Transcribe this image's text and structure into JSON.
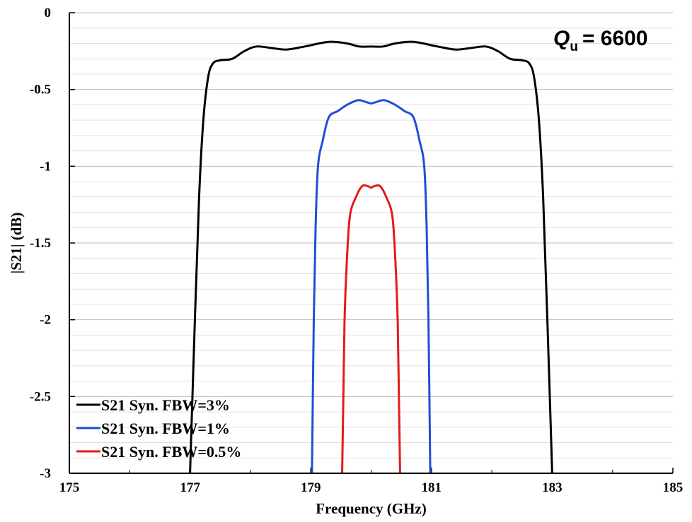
{
  "chart_data": {
    "type": "line",
    "xlabel": "Frequency (GHz)",
    "ylabel": "|S21| (dB)",
    "xlim": [
      175,
      185
    ],
    "ylim": [
      -3,
      0
    ],
    "x_ticks": [
      175,
      177,
      179,
      181,
      183,
      185
    ],
    "x_tick_labels": [
      "175",
      "177",
      "179",
      "181",
      "183",
      "185"
    ],
    "y_ticks": [
      0,
      -0.5,
      -1,
      -1.5,
      -2,
      -2.5,
      -3
    ],
    "y_tick_labels": [
      "0",
      "-0.5",
      "-1",
      "-1.5",
      "-2",
      "-2.5",
      "-3"
    ],
    "grid": "horizontal",
    "legend_position": "bottom-left",
    "annotation": {
      "main": "Q",
      "sub": "u",
      "rest": "= 6600"
    },
    "series": [
      {
        "name": "S21 Syn. FBW=3%",
        "color": "#000000",
        "points": [
          [
            177.0,
            -3.0
          ],
          [
            177.08,
            -2.0
          ],
          [
            177.15,
            -1.2
          ],
          [
            177.22,
            -0.7
          ],
          [
            177.3,
            -0.42
          ],
          [
            177.38,
            -0.33
          ],
          [
            177.5,
            -0.31
          ],
          [
            177.7,
            -0.3
          ],
          [
            177.9,
            -0.25
          ],
          [
            178.1,
            -0.22
          ],
          [
            178.35,
            -0.23
          ],
          [
            178.6,
            -0.24
          ],
          [
            178.9,
            -0.22
          ],
          [
            179.3,
            -0.19
          ],
          [
            179.6,
            -0.2
          ],
          [
            179.8,
            -0.22
          ],
          [
            180.0,
            -0.22
          ],
          [
            180.2,
            -0.22
          ],
          [
            180.4,
            -0.2
          ],
          [
            180.7,
            -0.19
          ],
          [
            181.1,
            -0.22
          ],
          [
            181.4,
            -0.24
          ],
          [
            181.65,
            -0.23
          ],
          [
            181.9,
            -0.22
          ],
          [
            182.1,
            -0.25
          ],
          [
            182.3,
            -0.3
          ],
          [
            182.5,
            -0.31
          ],
          [
            182.62,
            -0.33
          ],
          [
            182.7,
            -0.42
          ],
          [
            182.78,
            -0.7
          ],
          [
            182.85,
            -1.2
          ],
          [
            182.92,
            -2.0
          ],
          [
            183.0,
            -3.0
          ]
        ]
      },
      {
        "name": "S21 Syn. FBW=1%",
        "color": "#1f4fd6",
        "points": [
          [
            179.02,
            -3.0
          ],
          [
            179.05,
            -2.0
          ],
          [
            179.08,
            -1.4
          ],
          [
            179.12,
            -1.0
          ],
          [
            179.2,
            -0.83
          ],
          [
            179.3,
            -0.68
          ],
          [
            179.45,
            -0.64
          ],
          [
            179.6,
            -0.6
          ],
          [
            179.78,
            -0.57
          ],
          [
            179.9,
            -0.58
          ],
          [
            180.0,
            -0.59
          ],
          [
            180.1,
            -0.58
          ],
          [
            180.22,
            -0.57
          ],
          [
            180.4,
            -0.6
          ],
          [
            180.55,
            -0.64
          ],
          [
            180.7,
            -0.68
          ],
          [
            180.8,
            -0.83
          ],
          [
            180.88,
            -1.0
          ],
          [
            180.92,
            -1.4
          ],
          [
            180.95,
            -2.0
          ],
          [
            180.98,
            -3.0
          ]
        ]
      },
      {
        "name": "S21 Syn. FBW=0.5%",
        "color": "#e31b1b",
        "points": [
          [
            179.52,
            -3.0
          ],
          [
            179.54,
            -2.5
          ],
          [
            179.56,
            -2.0
          ],
          [
            179.6,
            -1.6
          ],
          [
            179.65,
            -1.32
          ],
          [
            179.75,
            -1.2
          ],
          [
            179.85,
            -1.13
          ],
          [
            179.95,
            -1.13
          ],
          [
            180.0,
            -1.14
          ],
          [
            180.05,
            -1.13
          ],
          [
            180.15,
            -1.13
          ],
          [
            180.25,
            -1.2
          ],
          [
            180.35,
            -1.32
          ],
          [
            180.4,
            -1.6
          ],
          [
            180.44,
            -2.0
          ],
          [
            180.46,
            -2.5
          ],
          [
            180.48,
            -3.0
          ]
        ]
      }
    ]
  }
}
